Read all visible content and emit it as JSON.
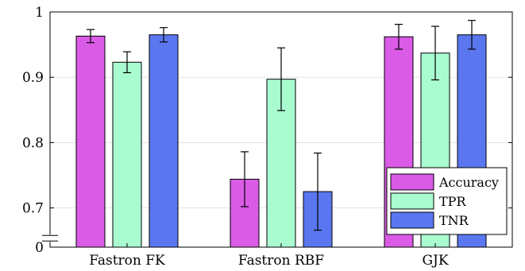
{
  "chart_data": {
    "type": "bar",
    "title": "",
    "xlabel": "",
    "ylabel": "",
    "categories": [
      "Fastron FK",
      "Fastron RBF",
      "GJK"
    ],
    "series": [
      {
        "name": "Accuracy",
        "color": "#d95be6",
        "values": [
          0.963,
          0.744,
          0.962
        ],
        "err": [
          0.01,
          0.042,
          0.019
        ]
      },
      {
        "name": "TPR",
        "color": "#a9fbd0",
        "values": [
          0.923,
          0.897,
          0.937
        ],
        "err": [
          0.016,
          0.048,
          0.041
        ]
      },
      {
        "name": "TNR",
        "color": "#5a77f0",
        "values": [
          0.965,
          0.725,
          0.965
        ],
        "err": [
          0.011,
          0.059,
          0.022
        ]
      }
    ],
    "y_axis": {
      "range": [
        0.64,
        1.0
      ],
      "axis_break": true,
      "ticks": [
        {
          "value": 0.64,
          "label": "0"
        },
        {
          "value": 0.7,
          "label": "0.7"
        },
        {
          "value": 0.8,
          "label": "0.8"
        },
        {
          "value": 0.9,
          "label": "0.9"
        },
        {
          "value": 1.0,
          "label": "1"
        }
      ]
    },
    "grid": true,
    "legend": {
      "position": "bottom-right"
    }
  }
}
